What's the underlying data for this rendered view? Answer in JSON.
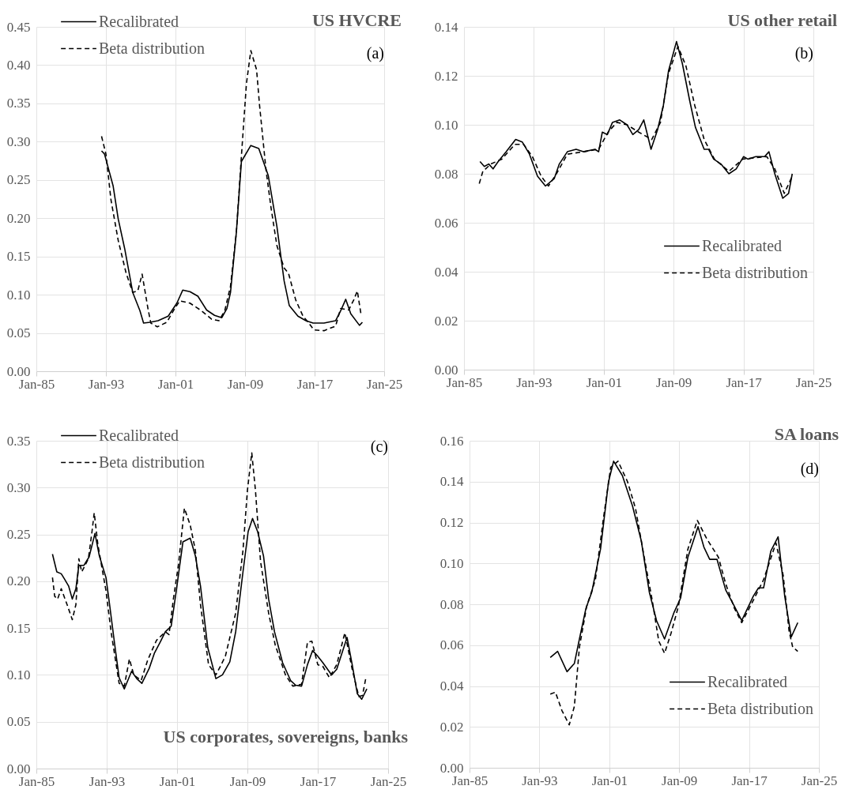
{
  "chart_data": [
    {
      "type": "line",
      "title": "US HVCRE",
      "annotations": [
        "(a)"
      ],
      "legend": "top left",
      "grid": true,
      "xlim": [
        "1985-01",
        "2025-01"
      ],
      "xticks": [
        {
          "value": "1985-01",
          "label": "Jan-85"
        },
        {
          "value": "1993-01",
          "label": "Jan-93"
        },
        {
          "value": "2001-01",
          "label": "Jan-01"
        },
        {
          "value": "2009-01",
          "label": "Jan-09"
        },
        {
          "value": "2017-01",
          "label": "Jan-17"
        },
        {
          "value": "2025-01",
          "label": "Jan-25"
        }
      ],
      "ylim": [
        0,
        0.45
      ],
      "yticks": [
        {
          "value": 0,
          "label": "0.00"
        },
        {
          "value": 0.05,
          "label": "0.05"
        },
        {
          "value": 0.1,
          "label": "0.10"
        },
        {
          "value": 0.15,
          "label": "0.15"
        },
        {
          "value": 0.2,
          "label": "0.20"
        },
        {
          "value": 0.25,
          "label": "0.25"
        },
        {
          "value": 0.3,
          "label": "0.30"
        },
        {
          "value": 0.35,
          "label": "0.35"
        },
        {
          "value": 0.4,
          "label": "0.40"
        },
        {
          "value": 0.45,
          "label": "0.45"
        }
      ],
      "series": [
        {
          "name": "Recalibrated",
          "color": "#000000",
          "line_style": "solid",
          "x": [
            "1992-07",
            "1992-11",
            "1993-11",
            "1994-06",
            "1995-03",
            "1996-02",
            "1996-12",
            "1997-05",
            "1998-02",
            "1999-01",
            "2000-03",
            "2001-03",
            "2001-11",
            "2002-09",
            "2003-08",
            "2004-08",
            "2005-07",
            "2006-05",
            "2006-12",
            "2007-05",
            "2008-01",
            "2008-08",
            "2009-09",
            "2010-08",
            "2011-09",
            "2012-09",
            "2013-07",
            "2014-02",
            "2015-02",
            "2016-01",
            "2016-11",
            "2018-02",
            "2019-06",
            "2020-01",
            "2020-08",
            "2021-03",
            "2022-03",
            "2022-07"
          ],
          "values": [
            0.288,
            0.284,
            0.242,
            0.199,
            0.16,
            0.103,
            0.079,
            0.063,
            0.064,
            0.066,
            0.072,
            0.089,
            0.106,
            0.104,
            0.098,
            0.08,
            0.073,
            0.07,
            0.082,
            0.103,
            0.181,
            0.274,
            0.295,
            0.291,
            0.256,
            0.189,
            0.118,
            0.086,
            0.072,
            0.066,
            0.063,
            0.063,
            0.066,
            0.079,
            0.094,
            0.075,
            0.06,
            0.064
          ]
        },
        {
          "name": "Beta distribution",
          "color": "#000000",
          "line_style": "dashed",
          "x": [
            "1992-07",
            "1993-01",
            "1993-08",
            "1994-06",
            "1995-05",
            "1996-02",
            "1996-09",
            "1997-03",
            "1997-11",
            "1998-03",
            "1998-12",
            "2000-01",
            "2000-12",
            "2001-07",
            "2002-09",
            "2004-01",
            "2005-03",
            "2006-01",
            "2006-09",
            "2007-05",
            "2008-01",
            "2008-08",
            "2009-03",
            "2009-09",
            "2010-05",
            "2010-09",
            "2011-06",
            "2012-01",
            "2012-09",
            "2013-07",
            "2014-01",
            "2014-11",
            "2015-09",
            "2016-05",
            "2016-12",
            "2018-02",
            "2019-06",
            "2020-01",
            "2020-12",
            "2021-07",
            "2021-12",
            "2022-05"
          ],
          "values": [
            0.307,
            0.284,
            0.224,
            0.171,
            0.128,
            0.103,
            0.105,
            0.127,
            0.082,
            0.063,
            0.058,
            0.064,
            0.082,
            0.092,
            0.089,
            0.079,
            0.068,
            0.066,
            0.079,
            0.111,
            0.181,
            0.281,
            0.376,
            0.419,
            0.394,
            0.348,
            0.263,
            0.213,
            0.164,
            0.135,
            0.128,
            0.093,
            0.072,
            0.063,
            0.054,
            0.053,
            0.059,
            0.082,
            0.08,
            0.093,
            0.105,
            0.075
          ]
        }
      ]
    },
    {
      "type": "line",
      "title": "US other retail",
      "annotations": [
        "(b)"
      ],
      "legend": "bottom right",
      "grid": true,
      "xlim": [
        "1985-01",
        "2025-01"
      ],
      "xticks": [
        {
          "value": "1985-01",
          "label": "Jan-85"
        },
        {
          "value": "1993-01",
          "label": "Jan-93"
        },
        {
          "value": "2001-01",
          "label": "Jan-01"
        },
        {
          "value": "2009-01",
          "label": "Jan-09"
        },
        {
          "value": "2017-01",
          "label": "Jan-17"
        },
        {
          "value": "2025-01",
          "label": "Jan-25"
        }
      ],
      "ylim": [
        0,
        0.14
      ],
      "yticks": [
        {
          "value": 0,
          "label": "0.00"
        },
        {
          "value": 0.02,
          "label": "0.02"
        },
        {
          "value": 0.04,
          "label": "0.04"
        },
        {
          "value": 0.06,
          "label": "0.06"
        },
        {
          "value": 0.08,
          "label": "0.08"
        },
        {
          "value": 0.1,
          "label": "0.10"
        },
        {
          "value": 0.12,
          "label": "0.12"
        },
        {
          "value": 0.14,
          "label": "0.14"
        }
      ],
      "series": [
        {
          "name": "Recalibrated",
          "color": "#000000",
          "line_style": "solid",
          "x": [
            "1986-11",
            "1987-05",
            "1987-11",
            "1988-05",
            "1988-12",
            "1989-11",
            "1990-12",
            "1991-09",
            "1992-07",
            "1993-06",
            "1994-05",
            "1995-05",
            "1995-12",
            "1996-11",
            "1997-11",
            "1998-09",
            "2000-01",
            "2000-06",
            "2000-11",
            "2001-06",
            "2002-01",
            "2002-11",
            "2003-09",
            "2004-05",
            "2005-01",
            "2005-08",
            "2006-06",
            "2007-03",
            "2007-11",
            "2008-06",
            "2009-05",
            "2010-01",
            "2010-11",
            "2011-07",
            "2012-07",
            "2013-01",
            "2013-08",
            "2014-06",
            "2015-05",
            "2016-03",
            "2017-01",
            "2017-07",
            "2018-06",
            "2019-06",
            "2019-12",
            "2020-08",
            "2021-07",
            "2022-03",
            "2022-08"
          ],
          "values": [
            0.085,
            0.083,
            0.084,
            0.082,
            0.085,
            0.089,
            0.094,
            0.093,
            0.088,
            0.079,
            0.075,
            0.078,
            0.084,
            0.089,
            0.09,
            0.089,
            0.09,
            0.089,
            0.097,
            0.096,
            0.101,
            0.102,
            0.1,
            0.096,
            0.098,
            0.102,
            0.09,
            0.098,
            0.108,
            0.122,
            0.134,
            0.125,
            0.11,
            0.099,
            0.09,
            0.09,
            0.086,
            0.084,
            0.08,
            0.082,
            0.087,
            0.086,
            0.087,
            0.087,
            0.089,
            0.08,
            0.07,
            0.072,
            0.08
          ]
        },
        {
          "name": "Beta distribution",
          "color": "#000000",
          "line_style": "dashed",
          "x": [
            "1986-10",
            "1987-03",
            "1988-02",
            "1989-05",
            "1990-11",
            "1991-11",
            "1992-11",
            "1993-11",
            "1994-09",
            "1995-08",
            "1996-11",
            "1998-09",
            "2000-06",
            "2001-07",
            "2002-07",
            "2003-09",
            "2005-01",
            "2006-07",
            "2007-07",
            "2008-06",
            "2009-07",
            "2010-06",
            "2011-06",
            "2012-07",
            "2013-09",
            "2015-05",
            "2016-12",
            "2019-09",
            "2020-08",
            "2021-09",
            "2022-08"
          ],
          "values": [
            0.076,
            0.081,
            0.084,
            0.086,
            0.092,
            0.092,
            0.087,
            0.079,
            0.075,
            0.08,
            0.088,
            0.089,
            0.09,
            0.097,
            0.101,
            0.1,
            0.097,
            0.094,
            0.101,
            0.121,
            0.132,
            0.124,
            0.108,
            0.094,
            0.086,
            0.081,
            0.086,
            0.087,
            0.082,
            0.072,
            0.079
          ]
        }
      ]
    },
    {
      "type": "line",
      "title": "US corporates, sovereigns, banks",
      "annotations": [
        "(c)"
      ],
      "legend": "top left",
      "grid": true,
      "xlim": [
        "1985-01",
        "2025-01"
      ],
      "xticks": [
        {
          "value": "1985-01",
          "label": "Jan-85"
        },
        {
          "value": "1993-01",
          "label": "Jan-93"
        },
        {
          "value": "2001-01",
          "label": "Jan-01"
        },
        {
          "value": "2009-01",
          "label": "Jan-09"
        },
        {
          "value": "2017-01",
          "label": "Jan-17"
        },
        {
          "value": "2025-01",
          "label": "Jan-25"
        }
      ],
      "ylim": [
        0,
        0.35
      ],
      "yticks": [
        {
          "value": 0,
          "label": "0.00"
        },
        {
          "value": 0.05,
          "label": "0.05"
        },
        {
          "value": 0.1,
          "label": "0.10"
        },
        {
          "value": 0.15,
          "label": "0.15"
        },
        {
          "value": 0.2,
          "label": "0.20"
        },
        {
          "value": 0.25,
          "label": "0.25"
        },
        {
          "value": 0.3,
          "label": "0.30"
        },
        {
          "value": 0.35,
          "label": "0.35"
        }
      ],
      "series": [
        {
          "name": "Recalibrated",
          "color": "#000000",
          "line_style": "solid",
          "x": [
            "1986-11",
            "1987-05",
            "1987-11",
            "1988-03",
            "1988-09",
            "1989-02",
            "1989-07",
            "1989-11",
            "1990-06",
            "1991-01",
            "1991-09",
            "1992-03",
            "1992-12",
            "1993-05",
            "1993-12",
            "1994-06",
            "1995-01",
            "1995-11",
            "1996-06",
            "1997-01",
            "1997-11",
            "1998-06",
            "1999-02",
            "1999-09",
            "2000-05",
            "2000-12",
            "2001-09",
            "2002-07",
            "2003-02",
            "2003-09",
            "2004-07",
            "2005-06",
            "2006-03",
            "2007-01",
            "2007-09",
            "2008-07",
            "2009-02",
            "2009-08",
            "2010-03",
            "2010-11",
            "2011-06",
            "2012-02",
            "2013-01",
            "2013-12",
            "2014-07",
            "2015-03",
            "2015-11",
            "2016-06",
            "2017-01",
            "2017-08",
            "2018-08",
            "2019-03",
            "2020-05",
            "2020-12",
            "2021-07",
            "2022-01",
            "2022-08"
          ],
          "values": [
            0.229,
            0.21,
            0.208,
            0.203,
            0.195,
            0.181,
            0.192,
            0.217,
            0.217,
            0.226,
            0.251,
            0.227,
            0.204,
            0.175,
            0.132,
            0.097,
            0.085,
            0.104,
            0.096,
            0.091,
            0.107,
            0.123,
            0.135,
            0.146,
            0.152,
            0.19,
            0.242,
            0.246,
            0.227,
            0.195,
            0.129,
            0.096,
            0.1,
            0.114,
            0.146,
            0.21,
            0.253,
            0.267,
            0.253,
            0.227,
            0.181,
            0.146,
            0.113,
            0.094,
            0.089,
            0.088,
            0.111,
            0.126,
            0.12,
            0.113,
            0.1,
            0.106,
            0.14,
            0.111,
            0.08,
            0.074,
            0.085
          ]
        },
        {
          "name": "Beta distribution",
          "color": "#000000",
          "line_style": "dashed",
          "x": [
            "1986-11",
            "1987-02",
            "1987-06",
            "1987-11",
            "1988-07",
            "1989-02",
            "1989-07",
            "1989-11",
            "1990-03",
            "1990-12",
            "1991-05",
            "1991-08",
            "1992-01",
            "1992-12",
            "1993-07",
            "1994-06",
            "1995-01",
            "1995-08",
            "1996-02",
            "1996-12",
            "1997-09",
            "1998-09",
            "1999-09",
            "2000-02",
            "2000-08",
            "2001-03",
            "2001-11",
            "2002-07",
            "2003-02",
            "2003-09",
            "2004-08",
            "2005-06",
            "2005-12",
            "2006-07",
            "2007-09",
            "2008-07",
            "2009-01",
            "2009-07",
            "2009-12",
            "2010-07",
            "2011-06",
            "2012-03",
            "2013-05",
            "2014-03",
            "2015-03",
            "2015-11",
            "2016-05",
            "2017-01",
            "2017-08",
            "2018-05",
            "2019-03",
            "2020-02",
            "2020-12",
            "2021-09",
            "2022-02",
            "2022-07"
          ],
          "values": [
            0.204,
            0.184,
            0.181,
            0.192,
            0.175,
            0.159,
            0.175,
            0.224,
            0.21,
            0.224,
            0.253,
            0.273,
            0.239,
            0.19,
            0.146,
            0.091,
            0.088,
            0.117,
            0.1,
            0.094,
            0.116,
            0.137,
            0.146,
            0.143,
            0.181,
            0.218,
            0.278,
            0.26,
            0.233,
            0.175,
            0.111,
            0.1,
            0.109,
            0.12,
            0.166,
            0.233,
            0.297,
            0.337,
            0.297,
            0.221,
            0.166,
            0.132,
            0.1,
            0.088,
            0.09,
            0.135,
            0.136,
            0.111,
            0.109,
            0.097,
            0.111,
            0.145,
            0.106,
            0.077,
            0.078,
            0.098
          ]
        }
      ]
    },
    {
      "type": "line",
      "title": "SA loans",
      "annotations": [
        "(d)"
      ],
      "legend": "bottom right",
      "grid": true,
      "xlim": [
        "1985-01",
        "2025-01"
      ],
      "xticks": [
        {
          "value": "1985-01",
          "label": "Jan-85"
        },
        {
          "value": "1993-01",
          "label": "Jan-93"
        },
        {
          "value": "2001-01",
          "label": "Jan-01"
        },
        {
          "value": "2009-01",
          "label": "Jan-09"
        },
        {
          "value": "2017-01",
          "label": "Jan-17"
        },
        {
          "value": "2025-01",
          "label": "Jan-25"
        }
      ],
      "ylim": [
        0,
        0.16
      ],
      "yticks": [
        {
          "value": 0,
          "label": "0.00"
        },
        {
          "value": 0.02,
          "label": "0.02"
        },
        {
          "value": 0.04,
          "label": "0.04"
        },
        {
          "value": 0.06,
          "label": "0.06"
        },
        {
          "value": 0.08,
          "label": "0.08"
        },
        {
          "value": 0.1,
          "label": "0.10"
        },
        {
          "value": 0.12,
          "label": "0.12"
        },
        {
          "value": 0.14,
          "label": "0.14"
        },
        {
          "value": 0.16,
          "label": "0.16"
        }
      ],
      "series": [
        {
          "name": "Recalibrated",
          "color": "#000000",
          "line_style": "solid",
          "x": [
            "1994-04",
            "1995-02",
            "1996-03",
            "1997-01",
            "1997-08",
            "1998-05",
            "1999-01",
            "2000-01",
            "2000-12",
            "2001-07",
            "2002-07",
            "2003-09",
            "2004-09",
            "2005-08",
            "2006-06",
            "2007-05",
            "2008-06",
            "2009-03",
            "2010-01",
            "2011-03",
            "2011-11",
            "2012-07",
            "2013-05",
            "2014-05",
            "2015-05",
            "2016-03",
            "2017-07",
            "2018-02",
            "2018-09",
            "2019-07",
            "2020-05",
            "2021-02",
            "2021-11",
            "2022-08"
          ],
          "values": [
            0.054,
            0.057,
            0.047,
            0.051,
            0.063,
            0.078,
            0.086,
            0.107,
            0.14,
            0.15,
            0.143,
            0.128,
            0.111,
            0.086,
            0.072,
            0.063,
            0.076,
            0.083,
            0.103,
            0.118,
            0.108,
            0.102,
            0.102,
            0.087,
            0.079,
            0.072,
            0.084,
            0.088,
            0.088,
            0.106,
            0.113,
            0.084,
            0.064,
            0.071
          ]
        },
        {
          "name": "Beta distribution",
          "color": "#000000",
          "line_style": "dashed",
          "x": [
            "1994-04",
            "1994-11",
            "1995-08",
            "1996-06",
            "1997-01",
            "1997-08",
            "1998-06",
            "1999-06",
            "2000-05",
            "2001-03",
            "2002-01",
            "2003-02",
            "2004-01",
            "2005-01",
            "2005-12",
            "2006-09",
            "2007-05",
            "2008-02",
            "2008-12",
            "2010-01",
            "2011-02",
            "2012-03",
            "2013-07",
            "2014-05",
            "2015-05",
            "2016-03",
            "2017-07",
            "2018-09",
            "2020-02",
            "2020-12",
            "2021-08",
            "2022-01",
            "2022-08"
          ],
          "values": [
            0.036,
            0.037,
            0.028,
            0.021,
            0.03,
            0.059,
            0.079,
            0.092,
            0.122,
            0.147,
            0.15,
            0.14,
            0.127,
            0.103,
            0.082,
            0.062,
            0.056,
            0.066,
            0.079,
            0.107,
            0.121,
            0.112,
            0.103,
            0.09,
            0.078,
            0.071,
            0.082,
            0.092,
            0.11,
            0.094,
            0.067,
            0.059,
            0.057
          ]
        }
      ]
    }
  ]
}
